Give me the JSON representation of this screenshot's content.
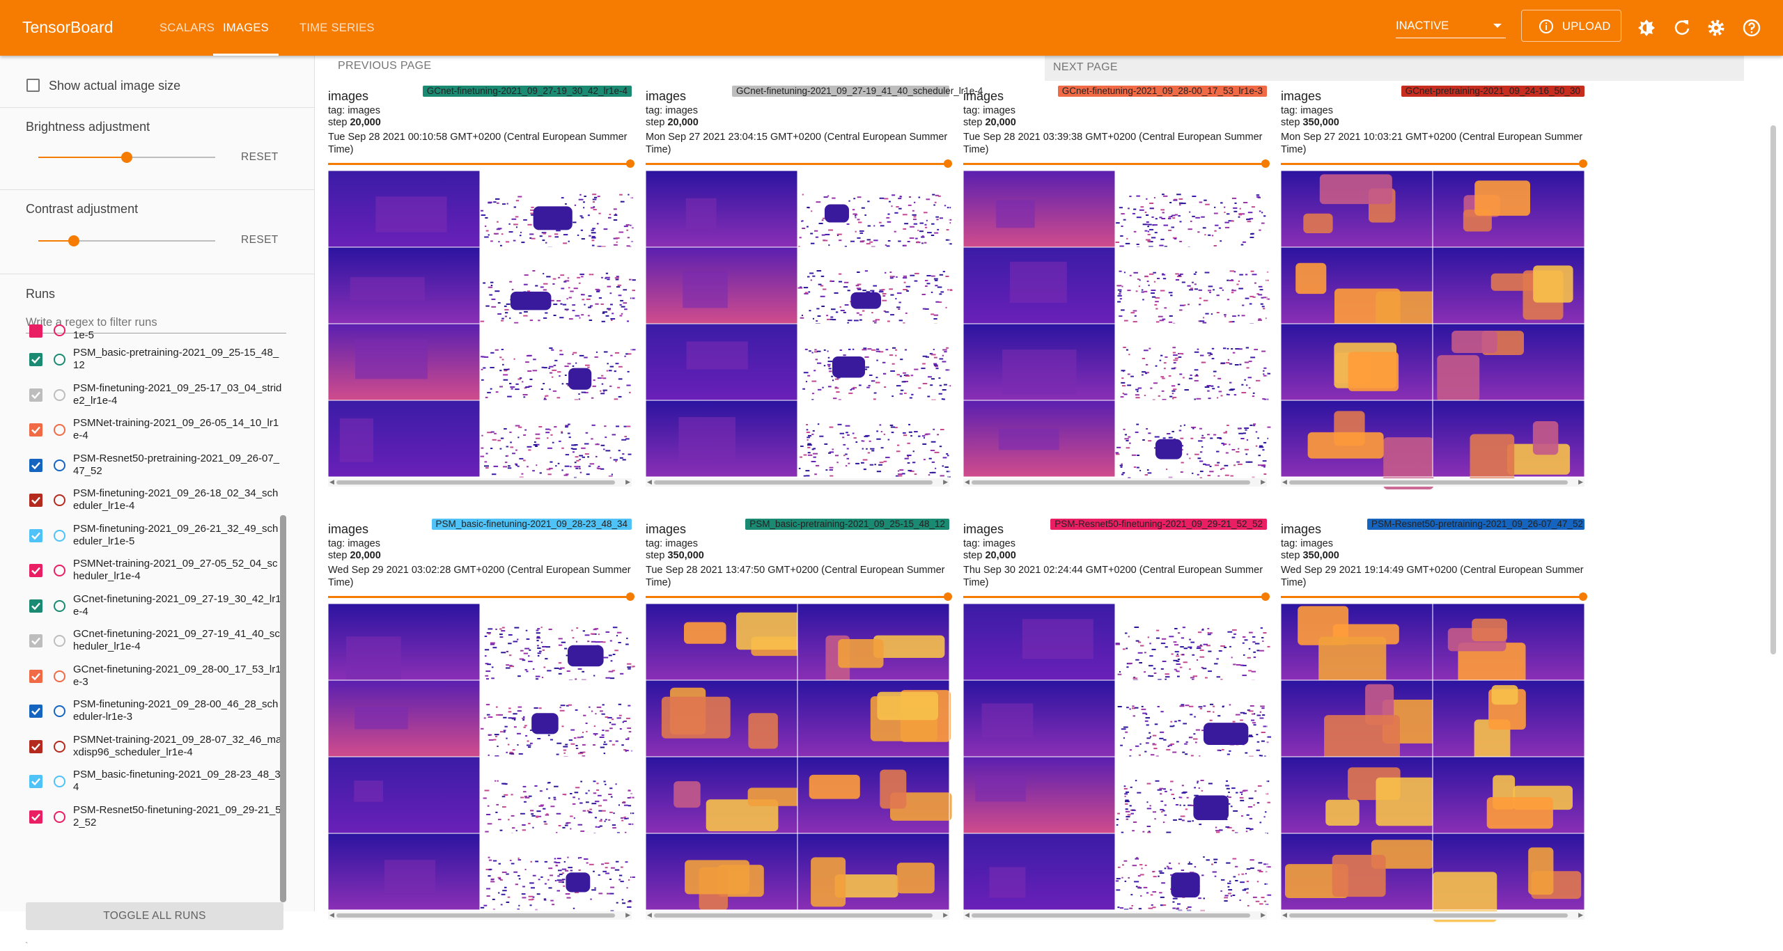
{
  "app": {
    "brand": "TensorBoard",
    "tabs": [
      {
        "label": "SCALARS",
        "active": false
      },
      {
        "label": "IMAGES",
        "active": true
      },
      {
        "label": "TIME SERIES",
        "active": false
      }
    ],
    "status_select": "INACTIVE",
    "upload_label": "UPLOAD",
    "accent_color": "#f57c00",
    "toolbar_icons": [
      "brightness-icon",
      "refresh-icon",
      "settings-icon",
      "help-icon"
    ]
  },
  "sidebar": {
    "show_actual_size_label": "Show actual image size",
    "show_actual_size_checked": false,
    "brightness": {
      "label": "Brightness adjustment",
      "value": 0.5,
      "reset": "RESET"
    },
    "contrast": {
      "label": "Contrast adjustment",
      "value": 0.2,
      "reset": "RESET"
    },
    "runs_title": "Runs",
    "runs_filter_placeholder": "Write a regex to filter runs",
    "partial_top_run": "1e-5",
    "runs": [
      {
        "name": "PSM_basic-pretraining-2021_09_25-15_48_12",
        "color": "#1b8a72",
        "checked": true
      },
      {
        "name": "PSM-finetuning-2021_09_25-17_03_04_stride2_lr1e-4",
        "color": "#bdbdbd",
        "checked": true
      },
      {
        "name": "PSMNet-training-2021_09_26-05_14_10_lr1e-4",
        "color": "#f06a45",
        "checked": true
      },
      {
        "name": "PSM-Resnet50-pretraining-2021_09_26-07_47_52",
        "color": "#1565c0",
        "checked": true
      },
      {
        "name": "PSM-finetuning-2021_09_26-18_02_34_scheduler_lr1e-4",
        "color": "#b52a1f",
        "checked": true
      },
      {
        "name": "PSM-finetuning-2021_09_26-21_32_49_scheduler_lr1e-5",
        "color": "#4fc3f7",
        "checked": true
      },
      {
        "name": "PSMNet-training-2021_09_27-05_52_04_scheduler_lr1e-4",
        "color": "#e91e63",
        "checked": true
      },
      {
        "name": "GCnet-finetuning-2021_09_27-19_30_42_lr1e-4",
        "color": "#1b8a72",
        "checked": true
      },
      {
        "name": "GCnet-finetuning-2021_09_27-19_41_40_scheduler_lr1e-4",
        "color": "#bdbdbd",
        "checked": true
      },
      {
        "name": "GCnet-finetuning-2021_09_28-00_17_53_lr1e-3",
        "color": "#f06a45",
        "checked": true
      },
      {
        "name": "PSM-finetuning-2021_09_28-00_46_28_scheduler-lr1e-3",
        "color": "#1565c0",
        "checked": true
      },
      {
        "name": "PSMNet-training-2021_09_28-07_32_46_maxdisp96_scheduler_lr1e-4",
        "color": "#b52a1f",
        "checked": true
      },
      {
        "name": "PSM_basic-finetuning-2021_09_28-23_48_34",
        "color": "#4fc3f7",
        "checked": true
      },
      {
        "name": "PSM-Resnet50-finetuning-2021_09_29-21_52_52",
        "color": "#e91e63",
        "checked": true
      }
    ],
    "toggle_all_label": "TOGGLE ALL RUNS",
    "footer_mark": "`"
  },
  "main": {
    "prev_page": "PREVIOUS PAGE",
    "next_page": "NEXT PAGE",
    "cards": [
      {
        "title": "images",
        "run": "GCnet-finetuning-2021_09_27-19_30_42_lr1e-4",
        "run_color": "#1b8a72",
        "tag": "tag: images",
        "step_label": "step",
        "step": "20,000",
        "time": "Tue Sep 28 2021 00:10:58 GMT+0200 (Central European Summer Time)",
        "palette": "sparse"
      },
      {
        "title": "images",
        "run": "GCnet-finetuning-2021_09_27-19_41_40_scheduler_lr1e-4",
        "run_color": "#bdbdbd",
        "tag": "tag: images",
        "step_label": "step",
        "step": "20,000",
        "time": "Mon Sep 27 2021 23:04:15 GMT+0200 (Central European Summer Time)",
        "palette": "sparse"
      },
      {
        "title": "images",
        "run": "GCnet-finetuning-2021_09_28-00_17_53_lr1e-3",
        "run_color": "#f06a45",
        "tag": "tag: images",
        "step_label": "step",
        "step": "20,000",
        "time": "Tue Sep 28 2021 03:39:38 GMT+0200 (Central European Summer Time)",
        "palette": "sparse"
      },
      {
        "title": "images",
        "run": "GCnet-pretraining-2021_09_24-16_50_30",
        "run_color": "#c62d1f",
        "tag": "tag: images",
        "step_label": "step",
        "step": "350,000",
        "time": "Mon Sep 27 2021 10:03:21 GMT+0200 (Central European Summer Time)",
        "palette": "dense"
      },
      {
        "title": "images",
        "run": "PSM_basic-finetuning-2021_09_28-23_48_34",
        "run_color": "#4fc3f7",
        "tag": "tag: images",
        "step_label": "step",
        "step": "20,000",
        "time": "Wed Sep 29 2021 03:02:28 GMT+0200 (Central European Summer Time)",
        "palette": "sparse"
      },
      {
        "title": "images",
        "run": "PSM_basic-pretraining-2021_09_25-15_48_12",
        "run_color": "#1b8a72",
        "tag": "tag: images",
        "step_label": "step",
        "step": "350,000",
        "time": "Tue Sep 28 2021 13:47:50 GMT+0200 (Central European Summer Time)",
        "palette": "dense"
      },
      {
        "title": "images",
        "run": "PSM-Resnet50-finetuning-2021_09_29-21_52_52",
        "run_color": "#e91e63",
        "tag": "tag: images",
        "step_label": "step",
        "step": "20,000",
        "time": "Thu Sep 30 2021 02:24:44 GMT+0200 (Central European Summer Time)",
        "palette": "sparse"
      },
      {
        "title": "images",
        "run": "PSM-Resnet50-pretraining-2021_09_26-07_47_52",
        "run_color": "#1565c0",
        "tag": "tag: images",
        "step_label": "step",
        "step": "350,000",
        "time": "Wed Sep 29 2021 19:14:49 GMT+0200 (Central European Summer Time)",
        "palette": "dense"
      }
    ]
  }
}
